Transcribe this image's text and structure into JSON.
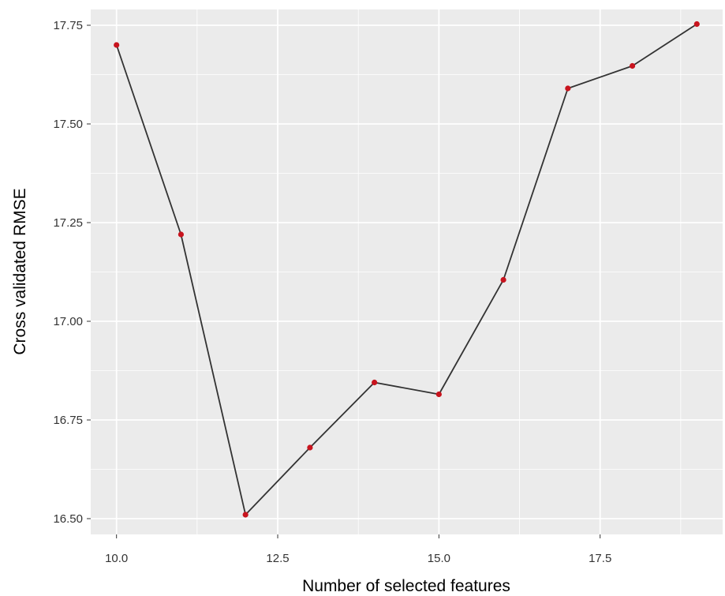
{
  "chart_data": {
    "type": "line",
    "title": "",
    "xlabel": "Number of selected features",
    "ylabel": "Cross validated RMSE",
    "x": [
      10,
      11,
      12,
      13,
      14,
      15,
      16,
      17,
      18,
      19
    ],
    "series": [
      {
        "values": [
          17.7,
          17.22,
          16.51,
          16.68,
          16.845,
          16.815,
          17.105,
          17.59,
          17.647,
          17.753
        ]
      }
    ],
    "xlim": [
      9.6,
      19.4
    ],
    "ylim": [
      16.46,
      17.79
    ],
    "x_ticks": [
      10.0,
      12.5,
      15.0,
      17.5
    ],
    "x_tick_labels": [
      "10.0",
      "12.5",
      "15.0",
      "17.5"
    ],
    "y_ticks": [
      16.5,
      16.75,
      17.0,
      17.25,
      17.5,
      17.75
    ],
    "y_tick_labels": [
      "16.50",
      "16.75",
      "17.00",
      "17.25",
      "17.50",
      "17.75"
    ],
    "grid": true,
    "legend": "none",
    "colors": {
      "panel_background": "#EBEBEB",
      "grid": "#FFFFFF",
      "line": "#333333",
      "point": "#C8141E"
    }
  }
}
